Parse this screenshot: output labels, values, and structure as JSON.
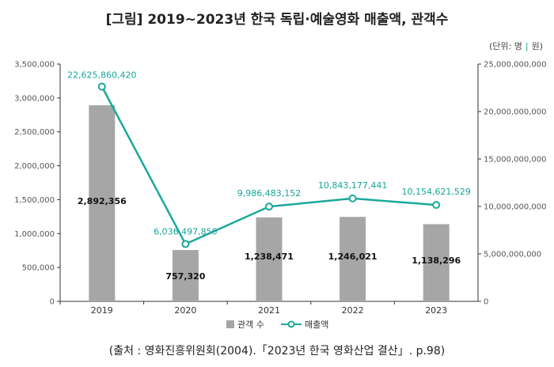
{
  "title": "[그림] 2019~2023년 한국 독립·예술영화 매출액, 관객수",
  "unit_prefix": "(단위: ",
  "unit_left": "명",
  "unit_sep": "|",
  "unit_right": "원)",
  "source": "(출처 : 영화진흥위원회(2004).「2023년 한국 영화산업 결산」. p.98)",
  "colors": {
    "bar": "#a6a6a6",
    "line": "#1aa89a",
    "axis": "#333333"
  },
  "chart_data": {
    "type": "bar",
    "categories": [
      "2019",
      "2020",
      "2021",
      "2022",
      "2023"
    ],
    "series": [
      {
        "name": "관객 수",
        "type": "bar",
        "axis": "left",
        "values": [
          2892356,
          757320,
          1238471,
          1246021,
          1138296
        ],
        "labels": [
          "2,892,356",
          "757,320",
          "1,238,471",
          "1,246,021",
          "1,138,296"
        ]
      },
      {
        "name": "매출액",
        "type": "line",
        "axis": "right",
        "values": [
          22625860420,
          6036497850,
          9986483152,
          10843177441,
          10154621529
        ],
        "labels": [
          "22,625,860,420",
          "6,036,497,850",
          "9,986,483,152",
          "10,843,177,441",
          "10,154,621,529"
        ]
      }
    ],
    "y_left": {
      "range": [
        0,
        3500000
      ],
      "ticks": [
        "0",
        "500,000",
        "1,000,000",
        "1,500,000",
        "2,000,000",
        "2,500,000",
        "3,000,000",
        "3,500,000"
      ]
    },
    "y_right": {
      "range": [
        0,
        25000000000
      ],
      "ticks": [
        "0",
        "5,000,000,000",
        "10,000,000,000",
        "15,000,000,000",
        "20,000,000,000",
        "25,000,000,000"
      ]
    },
    "legend": {
      "position": "bottom",
      "items": [
        "관객 수",
        "매출액"
      ]
    },
    "grid": false
  }
}
